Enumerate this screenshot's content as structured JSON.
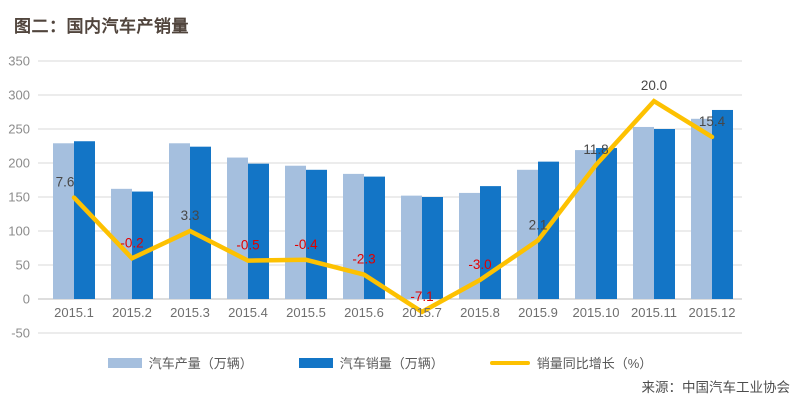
{
  "page": {
    "title": "图二：国内汽车产销量",
    "source": "来源：中国汽车工业协会"
  },
  "colors": {
    "title_text": "#51453d",
    "production_bar": "#a5bfde",
    "sales_bar": "#1375c6",
    "growth_line": "#fdc101",
    "label_positive": "#474747",
    "label_negative": "#e00000",
    "grid": "#d9d9d9",
    "zero_axis": "#bdbdbd",
    "y_axis_text": "#8c8c8c",
    "x_axis_text": "#6e6e6e"
  },
  "chart_data": {
    "type": "bar+line",
    "title": "图二：国内汽车产销量",
    "categories": [
      "2015.1",
      "2015.2",
      "2015.3",
      "2015.4",
      "2015.5",
      "2015.6",
      "2015.7",
      "2015.8",
      "2015.9",
      "2015.10",
      "2015.11",
      "2015.12"
    ],
    "series": [
      {
        "name": "汽车产量（万辆）",
        "type": "bar",
        "values": [
          229,
          162,
          229,
          208,
          196,
          184,
          152,
          156,
          190,
          219,
          253,
          265
        ]
      },
      {
        "name": "汽车销量（万辆）",
        "type": "bar",
        "values": [
          232,
          158,
          224,
          199,
          190,
          180,
          150,
          166,
          202,
          222,
          250,
          278
        ]
      },
      {
        "name": "销量同比增长（%）",
        "type": "line",
        "values": [
          7.6,
          -0.2,
          3.3,
          -0.5,
          -0.4,
          -2.3,
          -7.1,
          -3.0,
          2.1,
          11.8,
          20.0,
          15.4
        ],
        "labels": [
          "7.6",
          "-0.2",
          "3.3",
          "-0.5",
          "-0.4",
          "-2.3",
          "-7.1",
          "-3.0",
          "2.1",
          "11.8",
          "20.0",
          "15.4"
        ]
      }
    ],
    "y_axis": {
      "min": -50,
      "max": 350,
      "step": 50,
      "ticks": [
        350,
        300,
        250,
        200,
        150,
        100,
        50,
        0,
        -50
      ]
    },
    "secondary_axis_mapping": {
      "slope": 11.44,
      "intercept": 62.2
    },
    "legend_position": "bottom",
    "grid": true
  }
}
